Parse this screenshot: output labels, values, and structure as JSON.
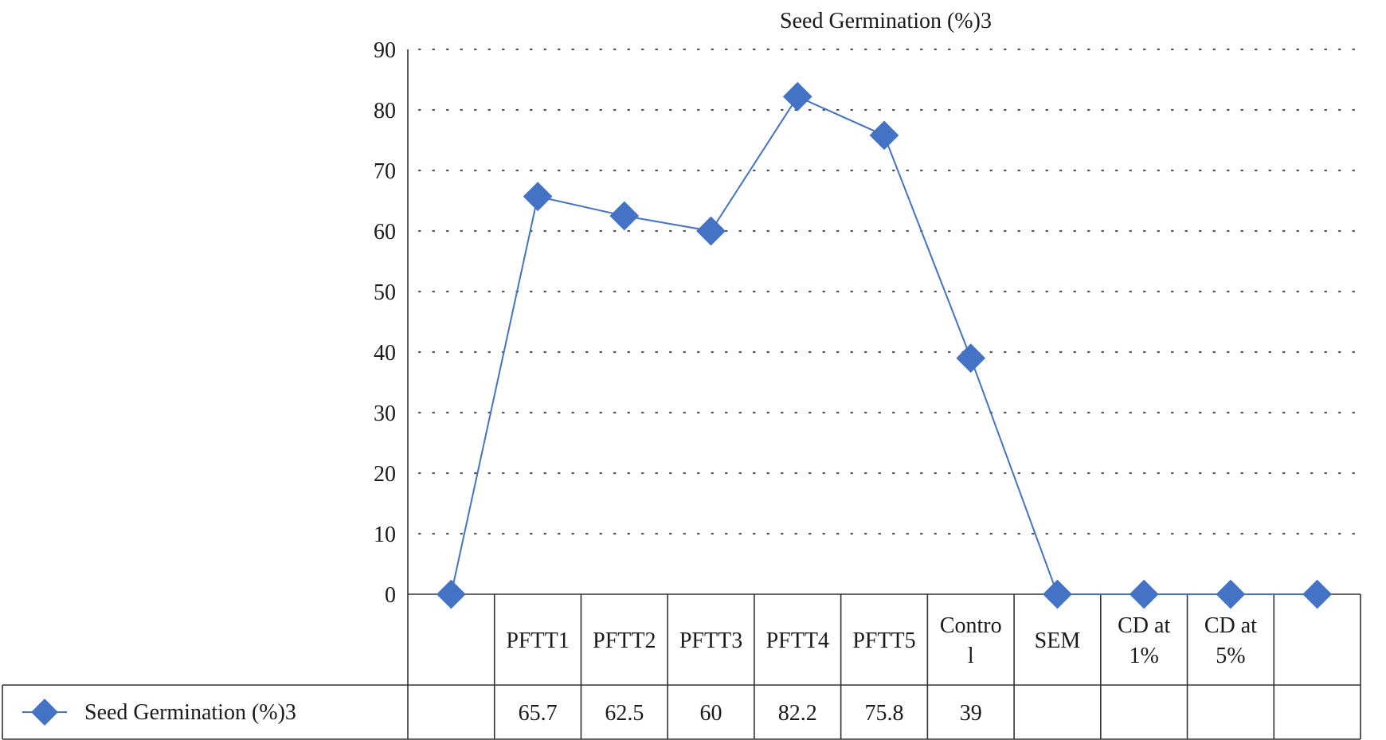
{
  "chart_data": {
    "type": "line",
    "title": "Seed Germination (%)3",
    "xlabel": "",
    "ylabel": "",
    "ylim": [
      0,
      90
    ],
    "yticks": [
      "0",
      "10",
      "20",
      "30",
      "40",
      "50",
      "60",
      "70",
      "80",
      "90"
    ],
    "grid": true,
    "legend_position": "data-table-left",
    "categories": [
      [
        ""
      ],
      [
        "PFTT1"
      ],
      [
        "PFTT2"
      ],
      [
        "PFTT3"
      ],
      [
        "PFTT4"
      ],
      [
        "PFTT5"
      ],
      [
        "Contro",
        "l"
      ],
      [
        "SEM"
      ],
      [
        "CD at",
        "1%"
      ],
      [
        "CD at",
        "5%"
      ],
      [
        ""
      ]
    ],
    "series": [
      {
        "name": "Seed Germination (%)3",
        "values": [
          0,
          65.7,
          62.5,
          60,
          82.2,
          75.8,
          39,
          0,
          0,
          0,
          0
        ],
        "table_values": [
          "",
          "65.7",
          "62.5",
          "60",
          "82.2",
          "75.8",
          "39",
          "",
          "",
          "",
          ""
        ],
        "color": "#4472c4"
      }
    ]
  }
}
